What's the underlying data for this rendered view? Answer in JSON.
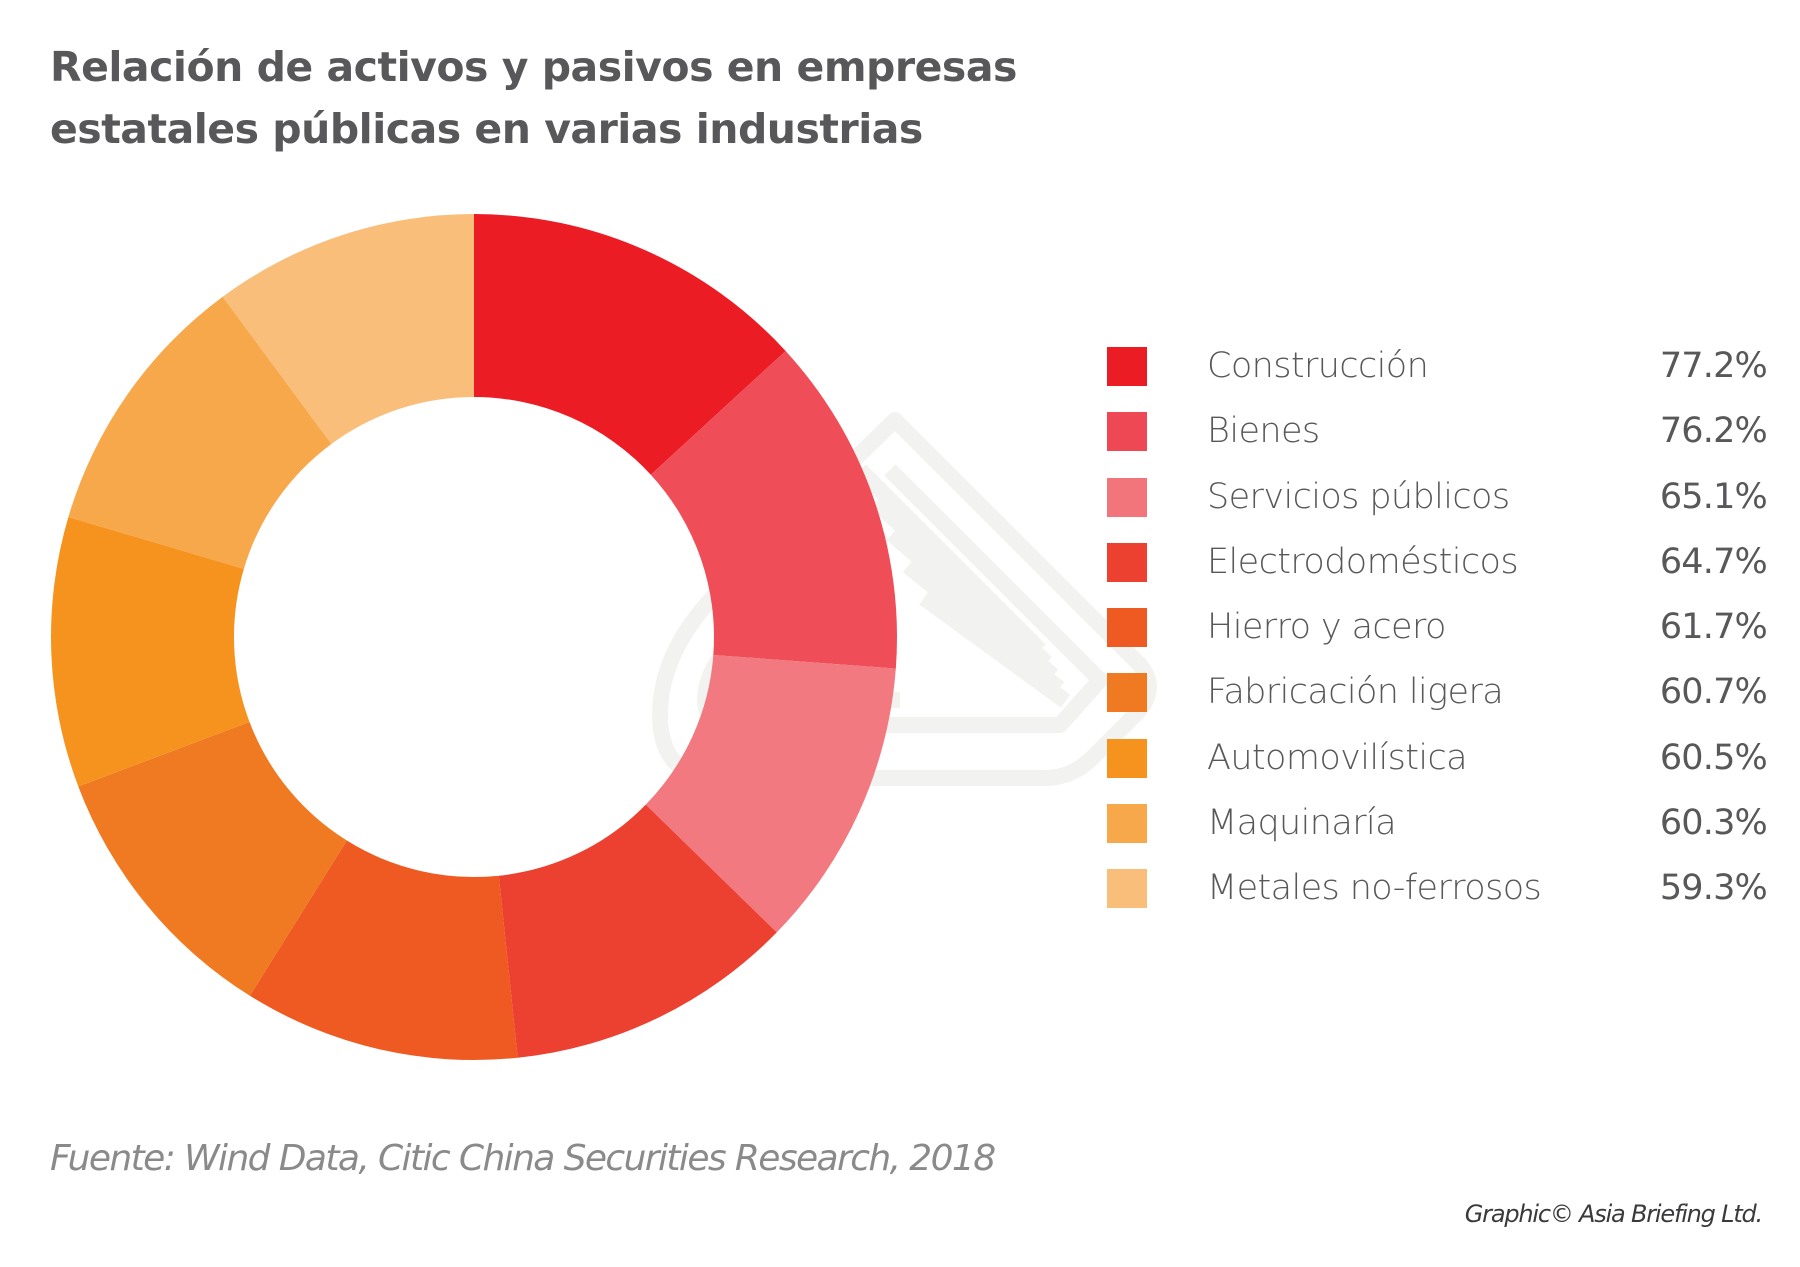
{
  "title": {
    "line1": "Relación de activos y pasivos en empresas",
    "line2": "estatales públicas en varias industrias"
  },
  "watermark": {
    "icon": "asia-briefing-logo-icon",
    "color": "#f1f1ef"
  },
  "chart_data": {
    "type": "pie",
    "variant": "donut",
    "title": "Relación de activos y pasivos en empresas estatales públicas en varias industrias",
    "unit": "%",
    "start": "top",
    "direction": "clockwise",
    "legend_position": "right",
    "categories": [
      "Construcción",
      "Bienes",
      "Servicios públicos",
      "Electrodomésticos",
      "Hierro y acero",
      "Fabricación ligera",
      "Automovilística",
      "Maquinaría",
      "Metales no-ferrosos"
    ],
    "values": [
      77.2,
      76.2,
      65.1,
      64.7,
      61.7,
      60.7,
      60.5,
      60.3,
      59.3
    ],
    "value_labels": [
      "77.2%",
      "76.2%",
      "65.1%",
      "64.7%",
      "61.7%",
      "60.7%",
      "60.5%",
      "60.3%",
      "59.3%"
    ],
    "colors": [
      "#ec1c24",
      "#ee4854",
      "#f1757b",
      "#ec4030",
      "#ee5a22",
      "#f07a22",
      "#f6931e",
      "#f7a84b",
      "#f9be7a"
    ]
  },
  "footer": {
    "source": "Fuente: Wind Data, Citic China Securities Research, 2018",
    "credit": "Graphic© Asia Briefing Ltd."
  }
}
